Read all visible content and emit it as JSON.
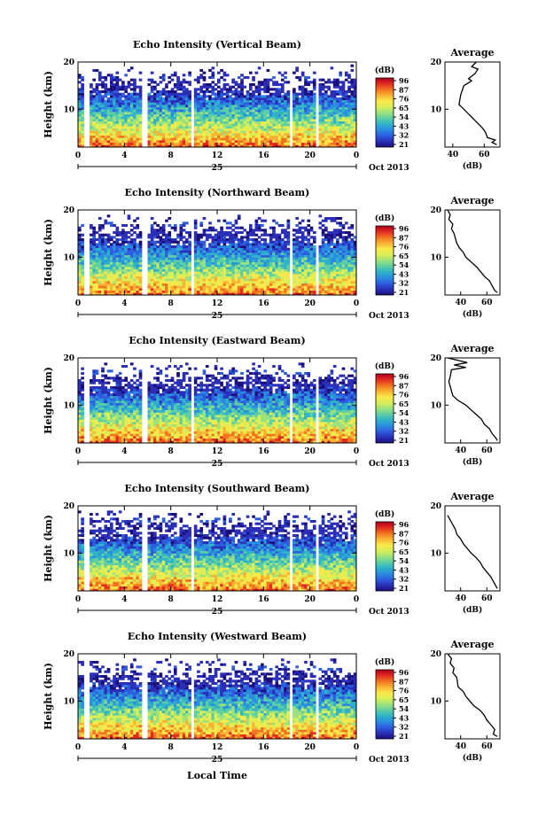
{
  "figure": {
    "date_label": "Oct 2013",
    "day_label": "25",
    "x_axis_label": "Local Time",
    "y_axis_label": "Height (km)",
    "colorbar_unit": "(dB)",
    "colorbar_ticks": [
      "96",
      "87",
      "76",
      "65",
      "54",
      "43",
      "32",
      "21"
    ],
    "colorbar_colors": [
      "#b0001c",
      "#e02a22",
      "#f2731f",
      "#f9b233",
      "#fbe84a",
      "#d9ef55",
      "#9de27c",
      "#5ecfa2",
      "#2eb3c9",
      "#2a8ee0",
      "#2d5ee0",
      "#2b2fb8",
      "#1a0f7a"
    ],
    "time_ticks": [
      "0",
      "4",
      "8",
      "12",
      "16",
      "20",
      "0"
    ],
    "height_ticks": [
      "20",
      "10"
    ],
    "average_title": "Average",
    "average_xlabel": "(dB)"
  },
  "chart_data": [
    {
      "type": "heatmap",
      "title": "Echo Intensity (Vertical Beam)",
      "xlabel": "Local Time",
      "ylabel": "Height (km)",
      "xlim": [
        0,
        24
      ],
      "ylim": [
        2,
        20
      ],
      "zlim": [
        21,
        96
      ],
      "gaps_hours": [
        [
          0.6,
          0.9
        ],
        [
          5.6,
          5.9
        ],
        [
          9.8,
          10.1
        ],
        [
          18.2,
          18.5
        ],
        [
          20.4,
          20.7
        ]
      ]
    },
    {
      "type": "line",
      "title": "Average",
      "xlabel": "(dB)",
      "xlim": [
        35,
        70
      ],
      "ylim": [
        2,
        20
      ],
      "xticks": [
        "40",
        "60"
      ],
      "points": [
        [
          55,
          20
        ],
        [
          52,
          19
        ],
        [
          56,
          18.5
        ],
        [
          54,
          17.5
        ],
        [
          52,
          17
        ],
        [
          50,
          16.5
        ],
        [
          52,
          16
        ],
        [
          47,
          15
        ],
        [
          45,
          13
        ],
        [
          44,
          11
        ],
        [
          47,
          10
        ],
        [
          50,
          9
        ],
        [
          53,
          8
        ],
        [
          56,
          7
        ],
        [
          59,
          6
        ],
        [
          61,
          5
        ],
        [
          62,
          4
        ],
        [
          67,
          3.5
        ],
        [
          65,
          3
        ],
        [
          68,
          2.5
        ]
      ]
    },
    {
      "type": "heatmap",
      "title": "Echo Intensity (Northward Beam)",
      "xlabel": "Local Time",
      "ylabel": "Height (km)",
      "xlim": [
        0,
        24
      ],
      "ylim": [
        2,
        20
      ],
      "zlim": [
        21,
        96
      ],
      "gaps_hours": [
        [
          0.6,
          0.9
        ],
        [
          5.6,
          5.9
        ],
        [
          9.8,
          10.1
        ],
        [
          18.2,
          18.5
        ],
        [
          20.4,
          20.7
        ]
      ]
    },
    {
      "type": "line",
      "title": "Average",
      "xlabel": "(dB)",
      "xlim": [
        28,
        70
      ],
      "ylim": [
        2,
        20
      ],
      "xticks": [
        "40",
        "60"
      ],
      "points": [
        [
          30,
          20
        ],
        [
          32,
          19
        ],
        [
          31,
          18
        ],
        [
          34,
          17
        ],
        [
          33,
          16
        ],
        [
          35,
          15
        ],
        [
          37,
          13
        ],
        [
          39,
          12
        ],
        [
          42,
          11
        ],
        [
          44,
          10
        ],
        [
          48,
          9
        ],
        [
          52,
          8
        ],
        [
          55,
          7
        ],
        [
          58,
          6
        ],
        [
          62,
          5
        ],
        [
          64,
          4
        ],
        [
          66,
          3
        ],
        [
          68,
          2.5
        ]
      ]
    },
    {
      "type": "heatmap",
      "title": "Echo Intensity (Eastward Beam)",
      "xlabel": "Local Time",
      "ylabel": "Height (km)",
      "xlim": [
        0,
        24
      ],
      "ylim": [
        2,
        20
      ],
      "zlim": [
        21,
        96
      ],
      "gaps_hours": [
        [
          0.6,
          0.9
        ],
        [
          5.6,
          5.9
        ],
        [
          9.8,
          10.1
        ],
        [
          18.2,
          18.5
        ],
        [
          20.4,
          20.7
        ]
      ]
    },
    {
      "type": "line",
      "title": "Average",
      "xlabel": "(dB)",
      "xlim": [
        28,
        70
      ],
      "ylim": [
        2,
        20
      ],
      "xticks": [
        "40",
        "60"
      ],
      "points": [
        [
          30,
          20
        ],
        [
          45,
          19
        ],
        [
          35,
          18.5
        ],
        [
          44,
          18
        ],
        [
          33,
          17.5
        ],
        [
          32,
          16
        ],
        [
          31,
          15
        ],
        [
          33,
          13
        ],
        [
          34,
          12
        ],
        [
          38,
          11
        ],
        [
          44,
          10
        ],
        [
          48,
          9
        ],
        [
          52,
          8
        ],
        [
          56,
          7
        ],
        [
          58,
          6
        ],
        [
          62,
          5
        ],
        [
          64,
          4
        ],
        [
          67,
          3
        ],
        [
          68,
          2.5
        ]
      ]
    },
    {
      "type": "heatmap",
      "title": "Echo Intensity (Southward Beam)",
      "xlabel": "Local Time",
      "ylabel": "Height (km)",
      "xlim": [
        0,
        24
      ],
      "ylim": [
        2,
        20
      ],
      "zlim": [
        21,
        96
      ],
      "gaps_hours": [
        [
          0.6,
          0.9
        ],
        [
          5.6,
          5.9
        ],
        [
          9.8,
          10.1
        ],
        [
          18.2,
          18.5
        ],
        [
          20.4,
          20.7
        ]
      ]
    },
    {
      "type": "line",
      "title": "Average",
      "xlabel": "(dB)",
      "xlim": [
        28,
        70
      ],
      "ylim": [
        2,
        20
      ],
      "xticks": [
        "40",
        "60"
      ],
      "points": [
        [
          30,
          18
        ],
        [
          32,
          17
        ],
        [
          34,
          16
        ],
        [
          36,
          15
        ],
        [
          37,
          14
        ],
        [
          40,
          13
        ],
        [
          42,
          12
        ],
        [
          45,
          11
        ],
        [
          48,
          10
        ],
        [
          52,
          9
        ],
        [
          55,
          8
        ],
        [
          57,
          7
        ],
        [
          60,
          6
        ],
        [
          63,
          5
        ],
        [
          65,
          4
        ],
        [
          67,
          3
        ],
        [
          68,
          2.5
        ]
      ]
    },
    {
      "type": "heatmap",
      "title": "Echo Intensity (Westward Beam)",
      "xlabel": "Local Time",
      "ylabel": "Height (km)",
      "xlim": [
        0,
        24
      ],
      "ylim": [
        2,
        20
      ],
      "zlim": [
        21,
        96
      ],
      "gaps_hours": [
        [
          0.6,
          0.9
        ],
        [
          5.6,
          5.9
        ],
        [
          9.8,
          10.1
        ],
        [
          18.2,
          18.5
        ],
        [
          20.4,
          20.7
        ]
      ]
    },
    {
      "type": "line",
      "title": "Average",
      "xlabel": "(dB)",
      "xlim": [
        28,
        70
      ],
      "ylim": [
        2,
        20
      ],
      "xticks": [
        "40",
        "60"
      ],
      "points": [
        [
          30,
          20
        ],
        [
          33,
          19
        ],
        [
          32,
          18
        ],
        [
          35,
          17
        ],
        [
          34,
          16
        ],
        [
          37,
          15
        ],
        [
          38,
          13
        ],
        [
          42,
          12
        ],
        [
          44,
          11
        ],
        [
          47,
          10
        ],
        [
          50,
          9
        ],
        [
          55,
          8
        ],
        [
          58,
          7
        ],
        [
          60,
          6
        ],
        [
          63,
          5
        ],
        [
          66,
          4
        ],
        [
          65,
          3
        ],
        [
          68,
          2.5
        ]
      ]
    }
  ]
}
